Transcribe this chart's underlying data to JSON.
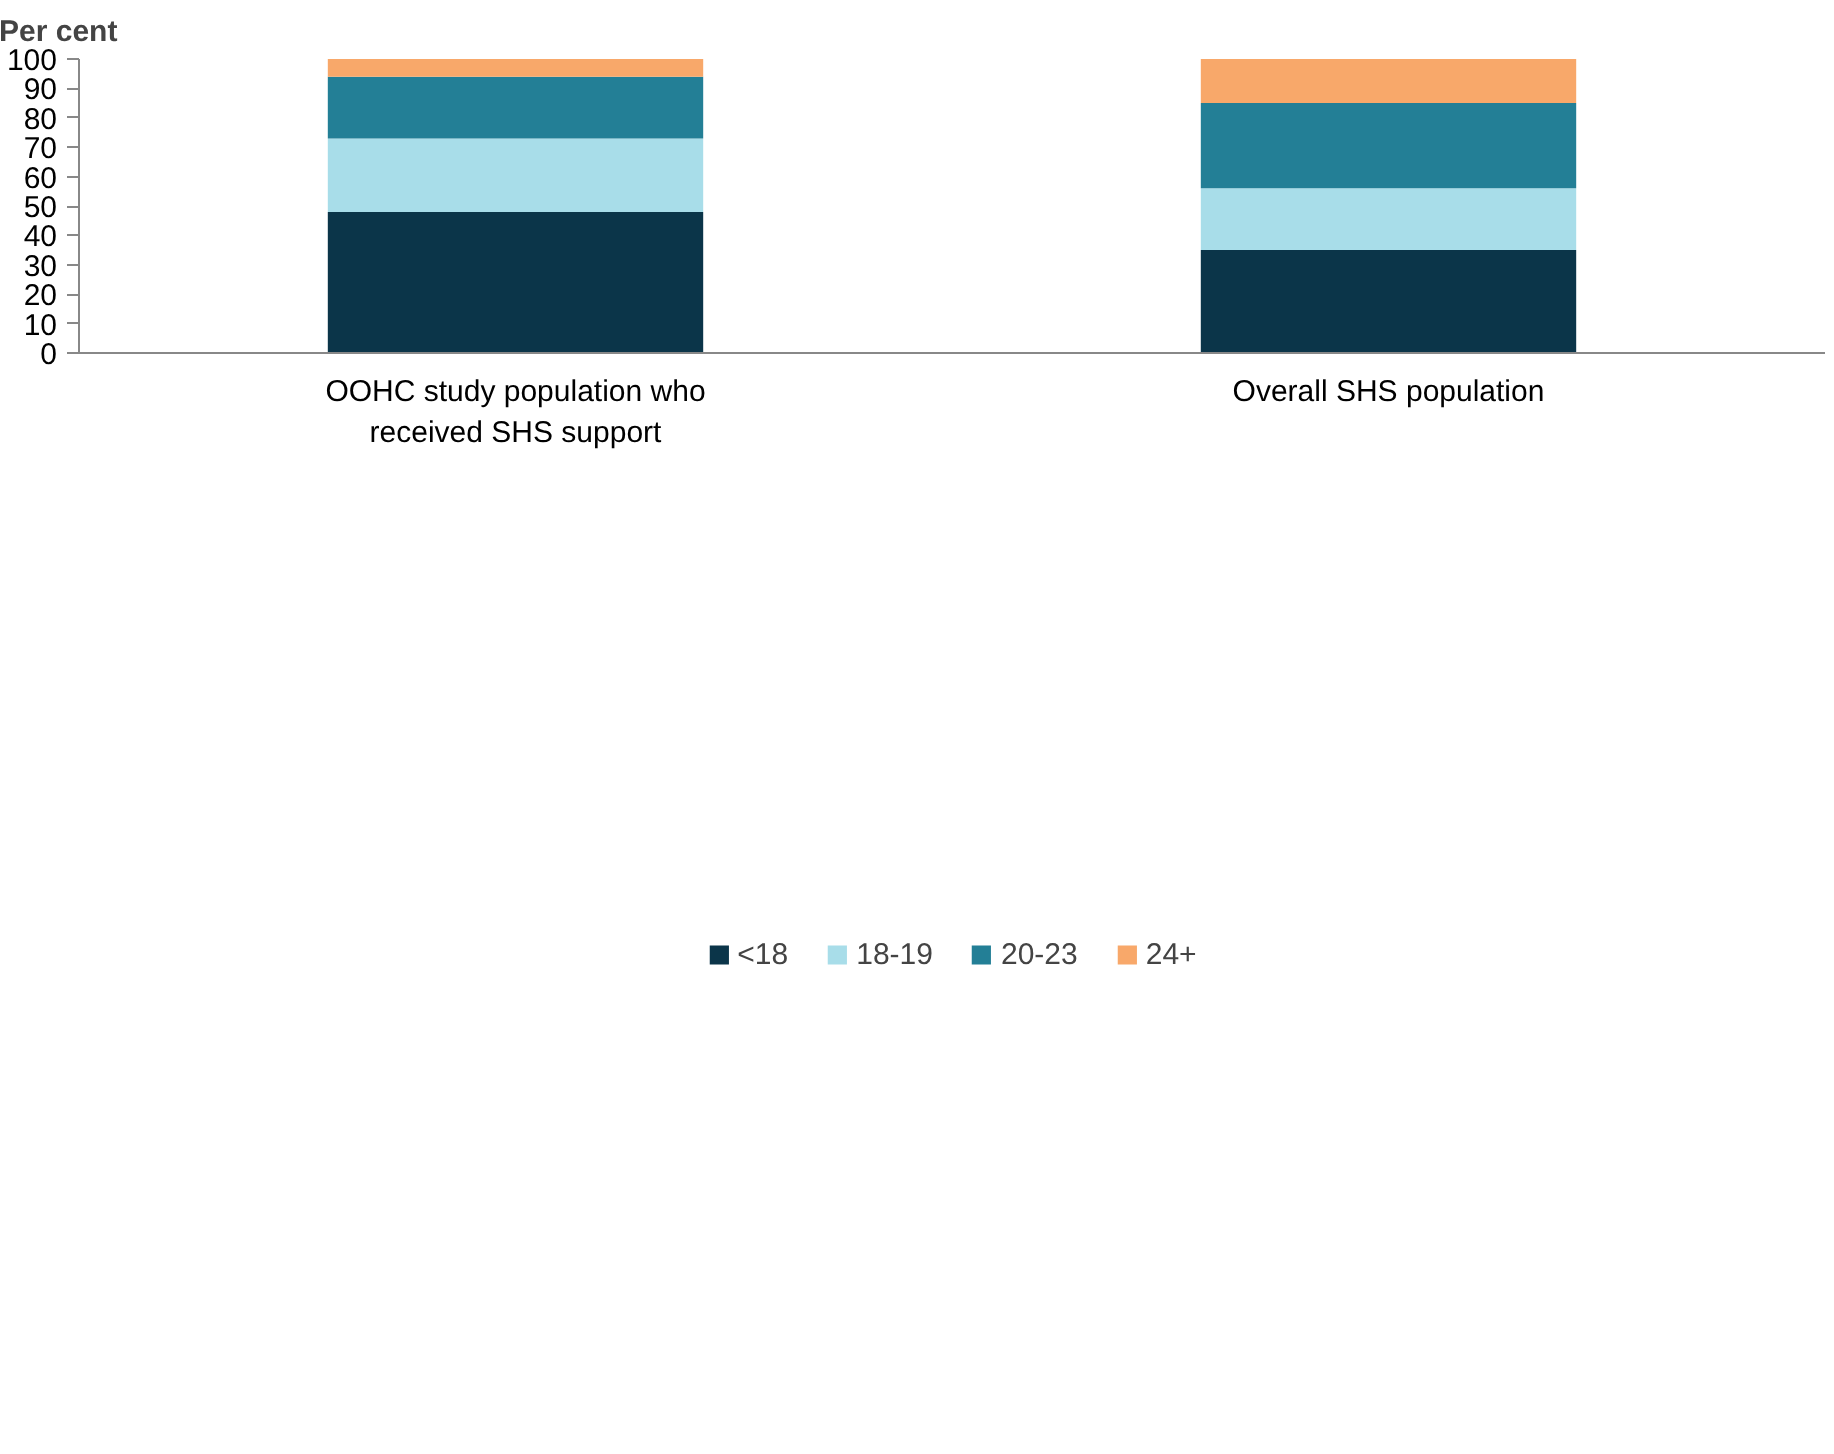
{
  "chart_data": {
    "type": "bar",
    "stacked": true,
    "ylabel": "Per cent",
    "categories": [
      "OOHC study population who received SHS support",
      "Overall SHS population"
    ],
    "series": [
      {
        "name": "<18",
        "color": "#0b3549",
        "values": [
          48,
          35
        ]
      },
      {
        "name": "18-19",
        "color": "#a8dde9",
        "values": [
          25,
          21
        ]
      },
      {
        "name": "20-23",
        "color": "#237f96",
        "values": [
          21,
          29
        ]
      },
      {
        "name": "24+",
        "color": "#f8a86a",
        "values": [
          6,
          15
        ]
      }
    ],
    "ylim": [
      0,
      100
    ],
    "yticks": [
      0,
      10,
      20,
      30,
      40,
      50,
      60,
      70,
      80,
      90,
      100
    ],
    "grid": false,
    "legend": "bottom"
  }
}
